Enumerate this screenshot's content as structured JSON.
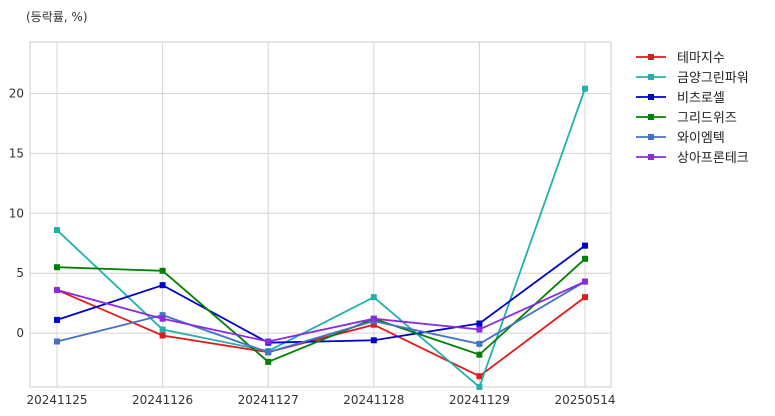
{
  "unit_note": "(등락률, %)",
  "chart_data": {
    "type": "line",
    "title": "",
    "xlabel": "",
    "ylabel": "(등락률, %)",
    "categories": [
      "20241125",
      "20241126",
      "20241127",
      "20241128",
      "20241129",
      "20250514"
    ],
    "ylim": [
      -4.5,
      24.3
    ],
    "yticks": [
      0,
      5,
      10,
      15,
      20
    ],
    "grid": true,
    "legend_position": "outside-right",
    "series": [
      {
        "name": "테마지수",
        "color": "#e31a1c",
        "values": [
          3.6,
          -0.2,
          -1.6,
          0.7,
          -3.6,
          3.0
        ]
      },
      {
        "name": "금양그린파워",
        "color": "#20b2aa",
        "values": [
          8.6,
          0.3,
          -1.5,
          3.0,
          -4.5,
          20.4
        ]
      },
      {
        "name": "비츠로셀",
        "color": "#0000cd",
        "values": [
          1.1,
          4.0,
          -0.8,
          -0.6,
          0.8,
          7.3
        ]
      },
      {
        "name": "그리드위즈",
        "color": "#008000",
        "values": [
          5.5,
          5.2,
          -2.4,
          1.2,
          -1.8,
          6.2
        ]
      },
      {
        "name": "와이엠텍",
        "color": "#4472c4",
        "values": [
          -0.7,
          1.5,
          -1.6,
          1.0,
          -0.9,
          4.3
        ]
      },
      {
        "name": "상아프론테크",
        "color": "#8a2be2",
        "values": [
          3.6,
          1.2,
          -0.7,
          1.2,
          0.3,
          4.3
        ]
      }
    ]
  }
}
